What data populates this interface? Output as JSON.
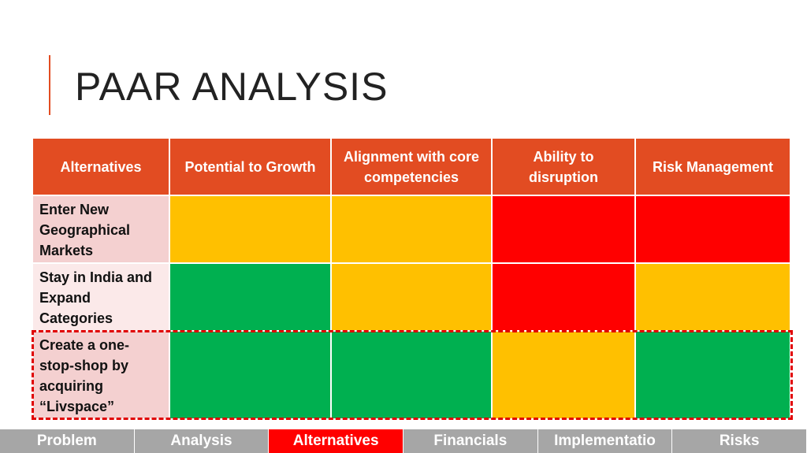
{
  "header": {
    "title": "PAAR ANALYSIS"
  },
  "table": {
    "columns": [
      "Alternatives",
      "Potential to Growth",
      "Alignment with core competencies",
      "Ability to disruption",
      "Risk Management"
    ],
    "header_color": "#e24c22",
    "rows": [
      {
        "label": "Enter New Geographical Markets",
        "label_color": "#f4d0d0",
        "cells": [
          "#ffc000",
          "#ffc000",
          "#ff0000",
          "#ff0000"
        ]
      },
      {
        "label": "Stay in India and Expand Categories",
        "label_color": "#fbe9e9",
        "cells": [
          "#00b050",
          "#ffc000",
          "#ff0000",
          "#ffc000"
        ]
      },
      {
        "label": "Create a one-stop-shop by acquiring “Livspace”",
        "label_color": "#f4d0d0",
        "cells": [
          "#00b050",
          "#00b050",
          "#ffc000",
          "#00b050"
        ]
      }
    ],
    "highlighted_row": 2
  },
  "nav": {
    "tabs": [
      "Problem",
      "Analysis",
      "Alternatives",
      "Financials",
      "Implementatio",
      "Risks"
    ],
    "active": 2
  }
}
